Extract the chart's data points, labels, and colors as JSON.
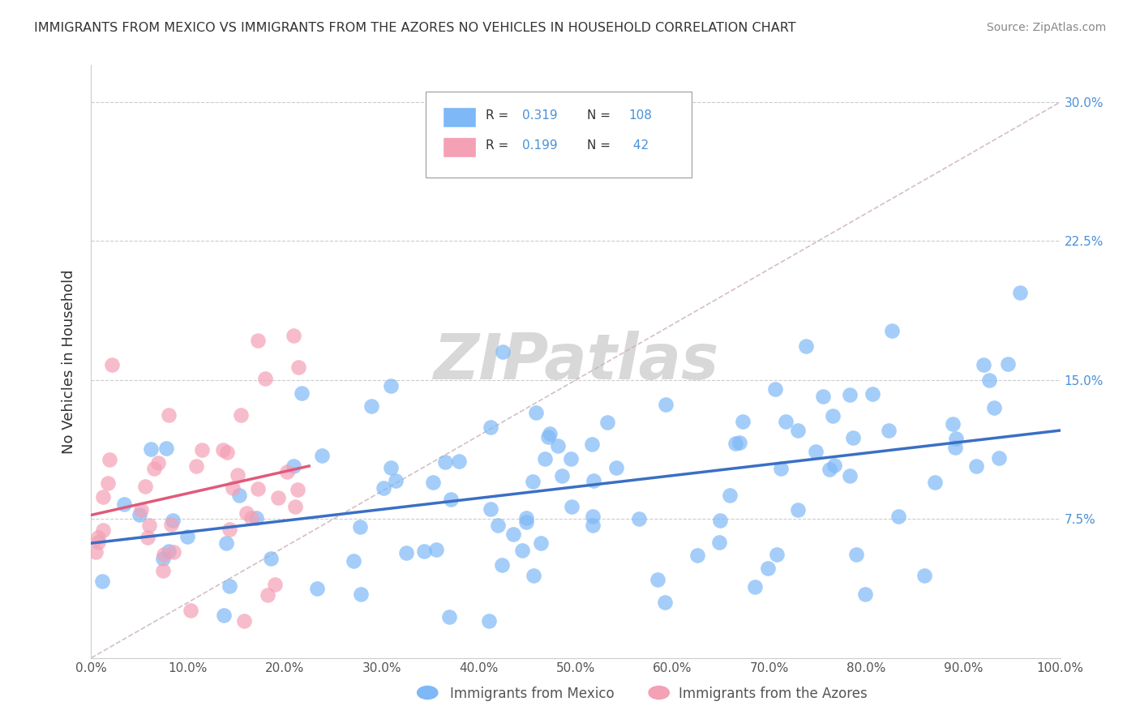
{
  "title": "IMMIGRANTS FROM MEXICO VS IMMIGRANTS FROM THE AZORES NO VEHICLES IN HOUSEHOLD CORRELATION CHART",
  "source": "Source: ZipAtlas.com",
  "ylabel": "No Vehicles in Household",
  "xlim": [
    0.0,
    1.0
  ],
  "ylim": [
    0.0,
    0.32
  ],
  "yticks": [
    0.075,
    0.15,
    0.225,
    0.3
  ],
  "y_right_labels": [
    "7.5%",
    "15.0%",
    "22.5%",
    "30.0%"
  ],
  "mexico_color": "#7eb8f7",
  "azores_color": "#f4a0b5",
  "mexico_line_color": "#3a6fc4",
  "azores_line_color": "#e05a7a",
  "diag_line_color": "#c8b0b8",
  "background_color": "#ffffff",
  "watermark_color": "#d8d8d8"
}
